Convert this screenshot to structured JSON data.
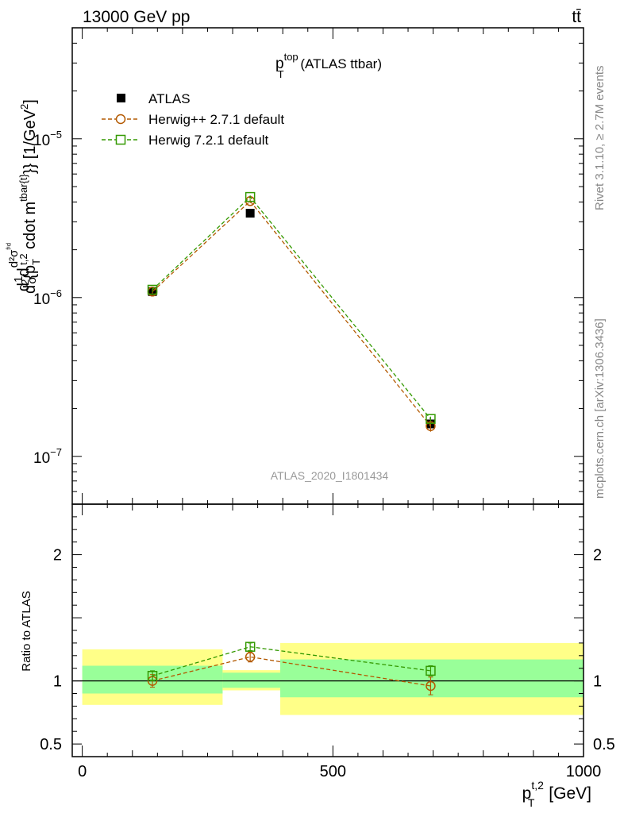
{
  "header": {
    "left": "13000 GeV pp",
    "right": "tt̄"
  },
  "side_labels": {
    "rivet": "Rivet 3.1.10, ≥ 2.7M events",
    "mcplots": "mcplots.cern.ch [arXiv:1306.3436]"
  },
  "watermark": "ATLAS_2020_I1801434",
  "colors": {
    "atlas": "#000000",
    "herwigpp": "#b35900",
    "herwig7": "#339900",
    "band_inner": "#99ff99",
    "band_outer": "#ffff88"
  },
  "chart_data": [
    {
      "type": "scatter",
      "panel": "main",
      "title": {
        "main": "p",
        "sup": "top",
        "sub": "T",
        "rest": " (ATLAS ttbar)"
      },
      "ylabel": {
        "parts": [
          "d",
          "1",
          "σ",
          "d",
          "d²σ",
          "ᶠⁱᵈ",
          "d",
          "2",
          "{p",
          "T",
          "t,2",
          " cdot m",
          "tbar{t}",
          "}} [1/GeV",
          "2",
          "]"
        ]
      },
      "ylabel_text": "d 1/σ d d²σ^{fid} / d² {p_T^{t,2} cdot m^{tbar{t}}} [1/GeV²]",
      "yscale": "log",
      "ylim": [
        5e-08,
        5e-05
      ],
      "xlim": [
        -20,
        1000
      ],
      "y_ticks": [
        {
          "value": 1e-07,
          "base": "10",
          "exp": "−7"
        },
        {
          "value": 1e-06,
          "base": "10",
          "exp": "−6"
        },
        {
          "value": 1e-05,
          "base": "10",
          "exp": "−5"
        }
      ],
      "legend": {
        "placement": "top-left",
        "entries": [
          "ATLAS",
          "Herwig++ 2.7.1 default",
          "Herwig 7.2.1 default"
        ]
      },
      "series": [
        {
          "name": "ATLAS",
          "x": [
            140,
            335,
            695
          ],
          "y": [
            1.09e-06,
            3.4e-06,
            1.6e-07
          ],
          "yerr": [
            4e-08,
            1e-07,
            1e-09
          ],
          "marker": "filled-square"
        },
        {
          "name": "Herwig++ 2.7.1 default",
          "x": [
            140,
            335,
            695
          ],
          "y": [
            1.09e-06,
            4.05e-06,
            1.55e-07
          ],
          "yerr": [
            5e-08,
            1.2e-07,
            1.2e-08
          ],
          "marker": "open-circle"
        },
        {
          "name": "Herwig 7.2.1 default",
          "x": [
            140,
            335,
            695
          ],
          "y": [
            1.12e-06,
            4.3e-06,
            1.72e-07
          ],
          "yerr": [
            4e-08,
            1e-07,
            6e-09
          ],
          "marker": "open-square"
        }
      ]
    },
    {
      "type": "scatter",
      "panel": "ratio",
      "ylabel": "Ratio to ATLAS",
      "ylim": [
        0.4,
        2.4
      ],
      "xlim": [
        -20,
        1000
      ],
      "xlabel": {
        "main": "p",
        "sup": "t,2",
        "sub": "T",
        "rest": " [GeV]"
      },
      "x_ticks": [
        0,
        500,
        1000
      ],
      "y_ticks": [
        0.5,
        1,
        2
      ],
      "reference_line": 1,
      "bands": [
        {
          "x0": 0,
          "x1": 280,
          "inner": [
            0.9,
            1.12
          ],
          "outer": [
            0.81,
            1.25
          ]
        },
        {
          "x0": 280,
          "x1": 395,
          "inner": [
            0.945,
            1.065
          ],
          "outer": [
            0.925,
            1.085
          ]
        },
        {
          "x0": 395,
          "x1": 1000,
          "inner": [
            0.87,
            1.17
          ],
          "outer": [
            0.73,
            1.3
          ]
        }
      ],
      "series": [
        {
          "name": "Herwig++ 2.7.1 default",
          "x": [
            140,
            335,
            695
          ],
          "y": [
            1.0,
            1.19,
            0.96
          ],
          "yerr": [
            0.05,
            0.04,
            0.07
          ]
        },
        {
          "name": "Herwig 7.2.1 default",
          "x": [
            140,
            335,
            695
          ],
          "y": [
            1.04,
            1.27,
            1.08
          ],
          "yerr": [
            0.04,
            0.03,
            0.04
          ]
        }
      ]
    }
  ]
}
